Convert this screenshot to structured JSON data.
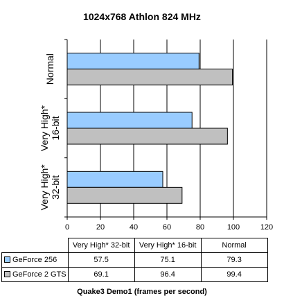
{
  "chart_data": {
    "type": "bar",
    "orientation": "horizontal",
    "title": "1024x768 Athlon 824 MHz",
    "xlabel": "Quake3 Demo1 (frames per second)",
    "categories": [
      "Very High* 32-bit",
      "Very High* 16-bit",
      "Normal"
    ],
    "axis_categories": [
      [
        "Very High*",
        "32-bit"
      ],
      [
        "Very High*",
        "16-bit"
      ],
      [
        "Normal"
      ]
    ],
    "series": [
      {
        "name": "GeForce 256",
        "values": [
          57.5,
          75.1,
          79.3
        ],
        "color": "#99ccff"
      },
      {
        "name": "GeForce 2 GTS",
        "values": [
          69.1,
          96.4,
          99.4
        ],
        "color": "#c0c0c0"
      }
    ],
    "xlim": [
      0,
      120
    ],
    "xticks": [
      0,
      20,
      40,
      60,
      80,
      100,
      120
    ],
    "grid": true,
    "legend": "data table below chart",
    "plot_background": "#ffffff",
    "grid_color": "#000000"
  }
}
